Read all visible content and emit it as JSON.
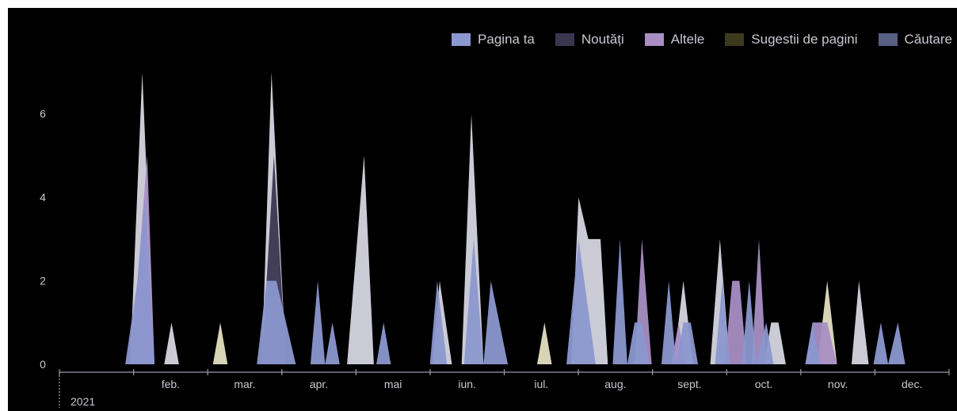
{
  "chart_data": {
    "type": "area",
    "title": "",
    "xlabel": "",
    "ylabel": "",
    "ylim": [
      0,
      7
    ],
    "y_ticks": [
      "0",
      "2",
      "4",
      "6"
    ],
    "grid": false,
    "legend_position": "top-right",
    "year_label": "2021",
    "month_labels": [
      "feb.",
      "mar.",
      "apr.",
      "mai",
      "iun.",
      "iul.",
      "aug.",
      "sept.",
      "oct.",
      "nov.",
      "dec."
    ],
    "series": [
      {
        "name": "Pagina ta",
        "color": "#8b97cf",
        "points": [
          [
            "2021-01-28",
            0
          ],
          [
            "2021-02-02",
            2
          ],
          [
            "2021-02-05",
            4
          ],
          [
            "2021-02-09",
            0
          ],
          [
            "2021-03-23",
            0
          ],
          [
            "2021-03-27",
            2
          ],
          [
            "2021-03-31",
            2
          ],
          [
            "2021-04-04",
            1
          ],
          [
            "2021-04-08",
            0
          ],
          [
            "2021-04-14",
            0
          ],
          [
            "2021-04-17",
            2
          ],
          [
            "2021-04-20",
            0
          ],
          [
            "2021-04-23",
            1
          ],
          [
            "2021-04-26",
            0
          ],
          [
            "2021-05-11",
            0
          ],
          [
            "2021-05-14",
            1
          ],
          [
            "2021-05-17",
            0
          ],
          [
            "2021-06-02",
            0
          ],
          [
            "2021-06-05",
            2
          ],
          [
            "2021-06-09",
            0
          ],
          [
            "2021-06-16",
            0
          ],
          [
            "2021-06-20",
            3
          ],
          [
            "2021-06-24",
            0
          ],
          [
            "2021-06-27",
            2
          ],
          [
            "2021-07-04",
            0
          ],
          [
            "2021-07-28",
            0
          ],
          [
            "2021-08-02",
            3
          ],
          [
            "2021-08-09",
            0
          ],
          [
            "2021-08-16",
            0
          ],
          [
            "2021-08-19",
            3
          ],
          [
            "2021-08-22",
            0
          ],
          [
            "2021-08-25",
            1
          ],
          [
            "2021-08-28",
            1
          ],
          [
            "2021-08-31",
            0
          ],
          [
            "2021-09-05",
            0
          ],
          [
            "2021-09-08",
            2
          ],
          [
            "2021-09-11",
            0
          ],
          [
            "2021-09-14",
            1
          ],
          [
            "2021-09-17",
            1
          ],
          [
            "2021-09-20",
            0
          ],
          [
            "2021-09-27",
            0
          ],
          [
            "2021-09-30",
            2
          ],
          [
            "2021-10-03",
            0
          ],
          [
            "2021-10-08",
            0
          ],
          [
            "2021-10-11",
            2
          ],
          [
            "2021-10-14",
            0
          ],
          [
            "2021-10-18",
            1
          ],
          [
            "2021-10-21",
            0
          ],
          [
            "2021-11-03",
            0
          ],
          [
            "2021-11-06",
            1
          ],
          [
            "2021-11-09",
            0
          ],
          [
            "2021-12-01",
            0
          ],
          [
            "2021-12-04",
            1
          ],
          [
            "2021-12-07",
            0
          ],
          [
            "2021-12-11",
            1
          ],
          [
            "2021-12-14",
            0
          ]
        ]
      },
      {
        "name": "Noutăți",
        "color": "#3a3650",
        "points": [
          [
            "2021-03-25",
            0
          ],
          [
            "2021-03-30",
            5
          ],
          [
            "2021-04-04",
            0
          ]
        ]
      },
      {
        "name": "Altele",
        "color": "#a98ec4",
        "points": [
          [
            "2021-01-30",
            0
          ],
          [
            "2021-02-02",
            2
          ],
          [
            "2021-02-06",
            5
          ],
          [
            "2021-02-09",
            0
          ],
          [
            "2021-08-25",
            0
          ],
          [
            "2021-08-28",
            3
          ],
          [
            "2021-09-01",
            0
          ],
          [
            "2021-09-09",
            0
          ],
          [
            "2021-09-12",
            1
          ],
          [
            "2021-09-15",
            0
          ],
          [
            "2021-10-01",
            0
          ],
          [
            "2021-10-04",
            2
          ],
          [
            "2021-10-07",
            2
          ],
          [
            "2021-10-10",
            0
          ],
          [
            "2021-10-12",
            0
          ],
          [
            "2021-10-15",
            3
          ],
          [
            "2021-10-18",
            0
          ],
          [
            "2021-11-03",
            0
          ],
          [
            "2021-11-06",
            1
          ],
          [
            "2021-11-12",
            1
          ],
          [
            "2021-11-16",
            0
          ]
        ]
      },
      {
        "name": "Sugestii de pagini",
        "color": "#3b3a1c",
        "points": []
      },
      {
        "name": "Căutare",
        "color": "#575f82",
        "points": []
      }
    ],
    "overlay_marks": [
      {
        "color": "#dcdce8",
        "points": [
          [
            "2021-01-30",
            0
          ],
          [
            "2021-02-04",
            7
          ],
          [
            "2021-02-09",
            0
          ]
        ]
      },
      {
        "color": "#dcdce8",
        "points": [
          [
            "2021-02-13",
            0
          ],
          [
            "2021-02-16",
            1
          ],
          [
            "2021-02-19",
            0
          ]
        ]
      },
      {
        "color": "#e9e7c6",
        "points": [
          [
            "2021-03-05",
            0
          ],
          [
            "2021-03-08",
            1
          ],
          [
            "2021-03-11",
            0
          ]
        ]
      },
      {
        "color": "#dcdce8",
        "points": [
          [
            "2021-03-25",
            0
          ],
          [
            "2021-03-29",
            7
          ],
          [
            "2021-04-04",
            0
          ]
        ]
      },
      {
        "color": "#dcdce8",
        "points": [
          [
            "2021-04-29",
            0
          ],
          [
            "2021-05-06",
            5
          ],
          [
            "2021-05-10",
            0
          ]
        ]
      },
      {
        "color": "#dcdce8",
        "points": [
          [
            "2021-06-03",
            0
          ],
          [
            "2021-06-06",
            2
          ],
          [
            "2021-06-11",
            0
          ]
        ]
      },
      {
        "color": "#dcdce8",
        "points": [
          [
            "2021-06-15",
            0
          ],
          [
            "2021-06-19",
            6
          ],
          [
            "2021-06-24",
            0
          ]
        ]
      },
      {
        "color": "#e9e7c6",
        "points": [
          [
            "2021-07-16",
            0
          ],
          [
            "2021-07-19",
            1
          ],
          [
            "2021-07-22",
            0
          ]
        ]
      },
      {
        "color": "#dcdce8",
        "points": [
          [
            "2021-07-30",
            0
          ],
          [
            "2021-08-02",
            4
          ],
          [
            "2021-08-06",
            3
          ],
          [
            "2021-08-11",
            3
          ],
          [
            "2021-08-14",
            0
          ]
        ]
      },
      {
        "color": "#dcdce8",
        "points": [
          [
            "2021-09-10",
            0
          ],
          [
            "2021-09-14",
            2
          ],
          [
            "2021-09-18",
            0
          ]
        ]
      },
      {
        "color": "#dcdce8",
        "points": [
          [
            "2021-09-25",
            0
          ],
          [
            "2021-09-29",
            3
          ],
          [
            "2021-10-03",
            0
          ]
        ]
      },
      {
        "color": "#dcdce8",
        "points": [
          [
            "2021-10-17",
            0
          ],
          [
            "2021-10-20",
            1
          ],
          [
            "2021-10-23",
            1
          ],
          [
            "2021-10-26",
            0
          ]
        ]
      },
      {
        "color": "#e9e7c6",
        "points": [
          [
            "2021-11-08",
            0
          ],
          [
            "2021-11-12",
            2
          ],
          [
            "2021-11-16",
            0
          ]
        ]
      },
      {
        "color": "#dcdce8",
        "points": [
          [
            "2021-11-22",
            0
          ],
          [
            "2021-11-25",
            2
          ],
          [
            "2021-11-29",
            0
          ]
        ]
      }
    ]
  }
}
